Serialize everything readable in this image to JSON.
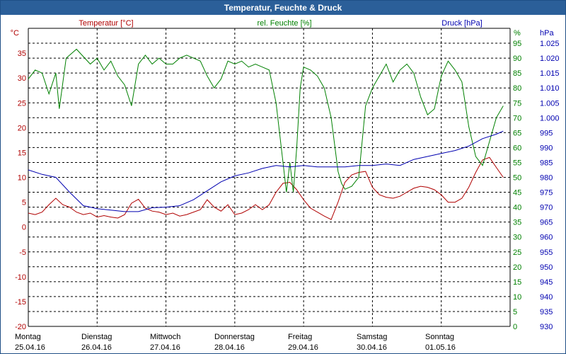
{
  "window": {
    "title": "Temperatur, Feuchte & Druck"
  },
  "chart_data": {
    "type": "line",
    "title": "Temperatur, Feuchte & Druck",
    "colors": {
      "temperature": "#b00000",
      "humidity": "#008000",
      "pressure": "#0000b0",
      "grid": "#000000"
    },
    "axes": {
      "left": {
        "label": "Temperatur [°C]",
        "unit": "°C",
        "range": [
          -20,
          40
        ],
        "ticks": [
          "35",
          "30",
          "25",
          "20",
          "15",
          "10",
          "5",
          "0",
          "-5",
          "-10",
          "-15",
          "-20"
        ]
      },
      "right1": {
        "label": "rel. Feuchte [%]",
        "unit": "%",
        "range": [
          0,
          100
        ],
        "ticks": [
          "95",
          "90",
          "85",
          "80",
          "75",
          "70",
          "65",
          "60",
          "55",
          "50",
          "45",
          "40",
          "35",
          "30",
          "25",
          "20",
          "15",
          "10",
          "5",
          "0"
        ]
      },
      "right2": {
        "label": "Druck [hPa]",
        "unit": "hPa",
        "range": [
          930,
          1030
        ],
        "ticks": [
          "1.025",
          "1.020",
          "1.015",
          "1.010",
          "1.005",
          "1.000",
          "995",
          "990",
          "985",
          "980",
          "975",
          "970",
          "965",
          "960",
          "955",
          "950",
          "945",
          "940",
          "935",
          "930"
        ]
      }
    },
    "x_range": [
      0,
      7
    ],
    "days": [
      {
        "name": "Montag",
        "date": "25.04.16"
      },
      {
        "name": "Dienstag",
        "date": "26.04.16"
      },
      {
        "name": "Mittwoch",
        "date": "27.04.16"
      },
      {
        "name": "Donnerstag",
        "date": "28.04.16"
      },
      {
        "name": "Freitag",
        "date": "29.04.16"
      },
      {
        "name": "Samstag",
        "date": "30.04.16"
      },
      {
        "name": "Sonntag",
        "date": "01.05.16"
      }
    ],
    "series": [
      {
        "name": "Temperatur [°C]",
        "axis": "left",
        "x": [
          0,
          0.1,
          0.2,
          0.3,
          0.4,
          0.5,
          0.6,
          0.7,
          0.8,
          0.9,
          1.0,
          1.1,
          1.2,
          1.3,
          1.4,
          1.5,
          1.6,
          1.7,
          1.8,
          1.9,
          2.0,
          2.1,
          2.2,
          2.3,
          2.4,
          2.5,
          2.6,
          2.7,
          2.8,
          2.9,
          3.0,
          3.1,
          3.2,
          3.3,
          3.4,
          3.5,
          3.6,
          3.7,
          3.8,
          3.9,
          4.0,
          4.1,
          4.2,
          4.3,
          4.4,
          4.5,
          4.6,
          4.7,
          4.8,
          4.9,
          5.0,
          5.1,
          5.2,
          5.3,
          5.4,
          5.5,
          5.6,
          5.7,
          5.8,
          5.9,
          6.0,
          6.1,
          6.2,
          6.3,
          6.4,
          6.5,
          6.6,
          6.7,
          6.8,
          6.9
        ],
        "values": [
          2.8,
          2.5,
          3.0,
          4.5,
          5.8,
          4.5,
          4.0,
          3.0,
          2.5,
          2.8,
          2.0,
          2.3,
          2.0,
          1.8,
          2.5,
          4.8,
          5.6,
          3.8,
          3.2,
          3.0,
          2.5,
          2.8,
          2.2,
          2.5,
          3.0,
          3.5,
          5.5,
          4.0,
          3.2,
          4.5,
          2.5,
          2.8,
          3.5,
          4.5,
          3.5,
          4.5,
          7.0,
          8.8,
          9.0,
          7.5,
          5.5,
          3.8,
          3.0,
          2.2,
          1.5,
          5.0,
          9.0,
          10.5,
          11.0,
          11.2,
          8.0,
          6.5,
          6.0,
          5.8,
          6.2,
          7.0,
          7.8,
          8.2,
          8.0,
          7.5,
          6.5,
          5.0,
          5.0,
          5.8,
          8.0,
          11.0,
          13.5,
          14.0,
          12.0,
          10.0
        ]
      },
      {
        "name": "rel. Feuchte [%]",
        "axis": "right1",
        "x": [
          0,
          0.1,
          0.2,
          0.3,
          0.4,
          0.45,
          0.55,
          0.7,
          0.9,
          1.0,
          1.1,
          1.2,
          1.3,
          1.4,
          1.5,
          1.6,
          1.7,
          1.8,
          1.9,
          2.0,
          2.1,
          2.2,
          2.3,
          2.4,
          2.5,
          2.6,
          2.7,
          2.8,
          2.9,
          3.0,
          3.1,
          3.2,
          3.3,
          3.4,
          3.5,
          3.6,
          3.7,
          3.75,
          3.8,
          3.85,
          3.9,
          3.95,
          4.0,
          4.1,
          4.2,
          4.3,
          4.4,
          4.5,
          4.55,
          4.6,
          4.7,
          4.8,
          4.9,
          5.0,
          5.05,
          5.1,
          5.2,
          5.3,
          5.4,
          5.5,
          5.6,
          5.7,
          5.8,
          5.9,
          6.0,
          6.1,
          6.2,
          6.3,
          6.4,
          6.5,
          6.6,
          6.7,
          6.8,
          6.9
        ],
        "values": [
          83,
          86,
          85,
          78,
          85,
          73,
          90,
          93,
          88,
          90,
          86,
          89,
          84,
          81,
          74,
          88,
          91,
          88,
          90,
          88,
          88,
          90,
          91,
          90,
          89,
          84,
          80,
          83,
          89,
          88,
          89,
          87,
          88,
          87,
          86,
          75,
          55,
          45,
          55,
          45,
          60,
          80,
          87,
          86,
          84,
          80,
          70,
          52,
          48,
          46,
          47,
          50,
          74,
          80,
          82,
          84,
          88,
          82,
          86,
          88,
          85,
          77,
          71,
          73,
          84,
          89,
          86,
          82,
          67,
          57,
          54,
          62,
          70,
          74
        ]
      },
      {
        "name": "Druck [hPa]",
        "axis": "right2",
        "x": [
          0,
          0.2,
          0.4,
          0.6,
          0.8,
          1.0,
          1.2,
          1.4,
          1.6,
          1.8,
          2.0,
          2.2,
          2.4,
          2.6,
          2.8,
          3.0,
          3.2,
          3.4,
          3.6,
          3.8,
          4.0,
          4.2,
          4.4,
          4.6,
          4.8,
          5.0,
          5.2,
          5.4,
          5.6,
          5.8,
          6.0,
          6.2,
          6.4,
          6.6,
          6.8,
          6.9
        ],
        "values": [
          982.5,
          981.0,
          980.0,
          975.0,
          970.5,
          969.5,
          969.0,
          968.5,
          968.5,
          969.8,
          970.0,
          970.5,
          972.5,
          975.5,
          978.5,
          980.5,
          981.5,
          983.0,
          984.0,
          983.5,
          984.0,
          983.5,
          983.5,
          983.5,
          984.0,
          984.0,
          984.5,
          984.0,
          986.0,
          987.0,
          988.0,
          989.0,
          990.5,
          993.0,
          994.5,
          995.5
        ]
      }
    ]
  }
}
